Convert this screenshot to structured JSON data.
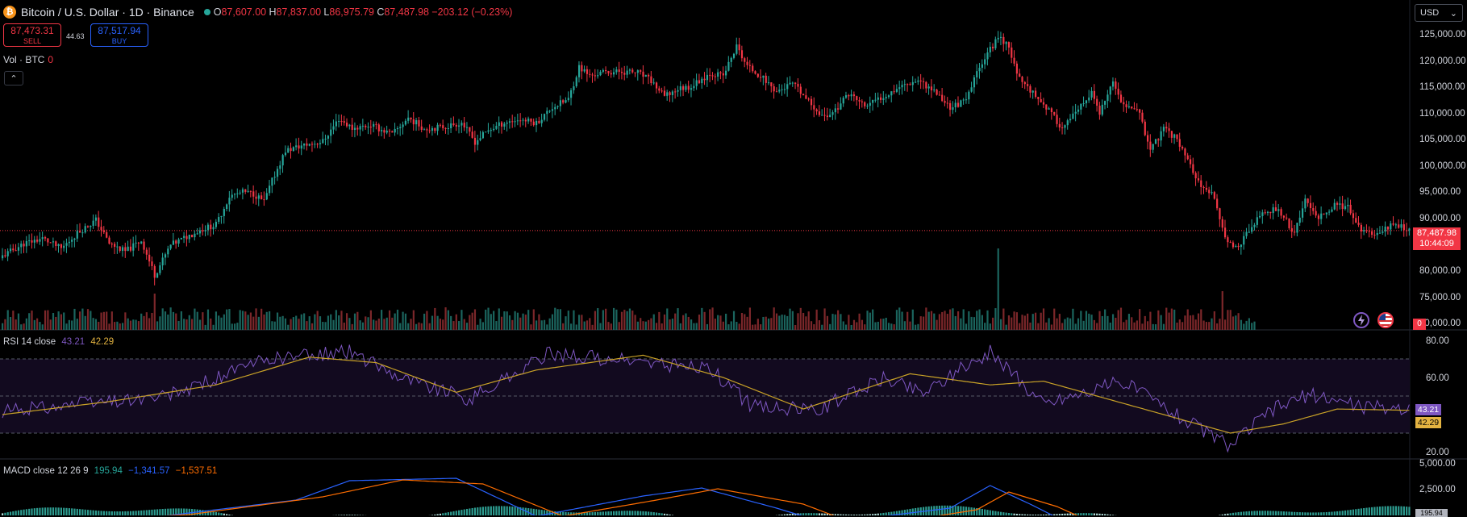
{
  "symbol": {
    "logo": "₿",
    "title": "Bitcoin / U.S. Dollar · 1D · Binance",
    "open_label": "O",
    "open": "87,607.00",
    "high_label": "H",
    "high": "87,837.00",
    "low_label": "L",
    "low": "86,975.79",
    "close_label": "C",
    "close": "87,487.98",
    "change": "−203.12 (−0.23%)"
  },
  "trade": {
    "sell_price": "87,473.31",
    "sell_label": "SELL",
    "spread": "44.63",
    "buy_price": "87,517.94",
    "buy_label": "BUY"
  },
  "volume_legend": {
    "label": "Vol · BTC",
    "value": "0"
  },
  "currency": "USD",
  "price_axis": [
    "125,000.00",
    "120,000.00",
    "115,000.00",
    "110,000.00",
    "105,000.00",
    "100,000.00",
    "95,000.00",
    "90,000.00",
    "80,000.00",
    "75,000.00",
    "70,000.00"
  ],
  "last_price": {
    "price": "87,487.98",
    "countdown": "10:44:09"
  },
  "volume_tag": "0",
  "rsi": {
    "label": "RSI 14 close",
    "value": "43.21",
    "signal": "42.29",
    "axis": [
      "80.00",
      "60.00",
      "20.00"
    ],
    "levels": {
      "upper": 70,
      "middle": 50,
      "lower": 30
    }
  },
  "macd": {
    "label": "MACD close 12 26 9",
    "hist": "195.94",
    "macd": "−1,341.57",
    "signal": "−1,537.51",
    "axis": [
      "5,000.00",
      "2,500.00"
    ],
    "tag": "195.94"
  },
  "colors": {
    "up": "#26a69a",
    "down": "#f23645",
    "rsi_line": "#7e57c2",
    "rsi_signal": "#c9a227",
    "macd_line": "#2962ff",
    "macd_signal": "#ff6d00",
    "background": "#000000"
  },
  "icons": [
    "bitcoin-logo-icon",
    "live-dot-icon",
    "chevron-up-icon",
    "chevron-down-icon",
    "lightning-icon",
    "us-flag-icon"
  ],
  "chart_data": {
    "type": "candlestick",
    "symbol": "Bitcoin / U.S. Dollar",
    "interval": "1D",
    "y_range": [
      70000,
      128000
    ],
    "close_points": [
      [
        0,
        82600
      ],
      [
        8,
        85000
      ],
      [
        15,
        86000
      ],
      [
        22,
        84000
      ],
      [
        28,
        87000
      ],
      [
        35,
        89500
      ],
      [
        40,
        85000
      ],
      [
        46,
        83500
      ],
      [
        52,
        85600
      ],
      [
        57,
        79000
      ],
      [
        63,
        84700
      ],
      [
        69,
        86300
      ],
      [
        75,
        87800
      ],
      [
        80,
        88600
      ],
      [
        85,
        94000
      ],
      [
        90,
        94800
      ],
      [
        94,
        94500
      ],
      [
        98,
        93000
      ],
      [
        101,
        97000
      ],
      [
        106,
        102700
      ],
      [
        111,
        103500
      ],
      [
        116,
        104100
      ],
      [
        120,
        104500
      ],
      [
        126,
        108800
      ],
      [
        131,
        107000
      ],
      [
        138,
        107600
      ],
      [
        146,
        105800
      ],
      [
        152,
        109000
      ],
      [
        158,
        106900
      ],
      [
        166,
        107300
      ],
      [
        172,
        108100
      ],
      [
        177,
        104400
      ],
      [
        182,
        106600
      ],
      [
        188,
        108100
      ],
      [
        194,
        108700
      ],
      [
        200,
        108000
      ],
      [
        206,
        111000
      ],
      [
        212,
        112500
      ],
      [
        216,
        118700
      ],
      [
        220,
        117000
      ],
      [
        226,
        117700
      ],
      [
        232,
        117800
      ],
      [
        238,
        117600
      ],
      [
        243,
        116000
      ],
      [
        248,
        113000
      ],
      [
        253,
        114500
      ],
      [
        258,
        115000
      ],
      [
        265,
        117500
      ],
      [
        270,
        117000
      ],
      [
        275,
        122600
      ],
      [
        279,
        118800
      ],
      [
        284,
        117000
      ],
      [
        290,
        114000
      ],
      [
        296,
        115500
      ],
      [
        302,
        112000
      ],
      [
        308,
        109000
      ],
      [
        313,
        111000
      ],
      [
        317,
        113700
      ],
      [
        323,
        111200
      ],
      [
        328,
        112500
      ],
      [
        336,
        115000
      ],
      [
        343,
        116300
      ],
      [
        349,
        114100
      ],
      [
        355,
        111000
      ],
      [
        361,
        112200
      ],
      [
        366,
        119000
      ],
      [
        370,
        122000
      ],
      [
        373,
        124500
      ],
      [
        377,
        122800
      ],
      [
        380,
        117000
      ],
      [
        385,
        114400
      ],
      [
        391,
        111000
      ],
      [
        397,
        107000
      ],
      [
        403,
        110400
      ],
      [
        408,
        113700
      ],
      [
        411,
        109800
      ],
      [
        416,
        115500
      ],
      [
        421,
        110500
      ],
      [
        425,
        111200
      ],
      [
        430,
        102800
      ],
      [
        435,
        106800
      ],
      [
        440,
        105000
      ],
      [
        444,
        101000
      ],
      [
        449,
        95500
      ],
      [
        454,
        94000
      ],
      [
        458,
        86000
      ],
      [
        462,
        84000
      ],
      [
        467,
        87500
      ],
      [
        472,
        91000
      ],
      [
        478,
        91500
      ],
      [
        484,
        87000
      ],
      [
        488,
        93000
      ],
      [
        493,
        89900
      ],
      [
        499,
        92300
      ],
      [
        504,
        91900
      ],
      [
        508,
        88200
      ],
      [
        513,
        86400
      ],
      [
        518,
        88200
      ],
      [
        522,
        88500
      ],
      [
        527,
        87490
      ]
    ],
    "rsi_points": [
      [
        0,
        42
      ],
      [
        40,
        47
      ],
      [
        60,
        49
      ],
      [
        100,
        70
      ],
      [
        130,
        74
      ],
      [
        150,
        60
      ],
      [
        175,
        48
      ],
      [
        205,
        73
      ],
      [
        240,
        68
      ],
      [
        265,
        65
      ],
      [
        280,
        45
      ],
      [
        305,
        42
      ],
      [
        330,
        60
      ],
      [
        345,
        52
      ],
      [
        370,
        74
      ],
      [
        390,
        46
      ],
      [
        420,
        58
      ],
      [
        440,
        40
      ],
      [
        460,
        23
      ],
      [
        475,
        42
      ],
      [
        490,
        51
      ],
      [
        510,
        44
      ],
      [
        527,
        43.21
      ]
    ],
    "rsi_signal_points": [
      [
        0,
        40
      ],
      [
        40,
        47
      ],
      [
        80,
        56
      ],
      [
        115,
        71
      ],
      [
        140,
        68
      ],
      [
        170,
        52
      ],
      [
        200,
        64
      ],
      [
        240,
        72
      ],
      [
        270,
        60
      ],
      [
        300,
        43
      ],
      [
        340,
        62
      ],
      [
        370,
        56
      ],
      [
        390,
        58
      ],
      [
        420,
        46
      ],
      [
        440,
        38
      ],
      [
        460,
        30
      ],
      [
        480,
        35
      ],
      [
        500,
        43
      ],
      [
        527,
        42.29
      ]
    ]
  }
}
